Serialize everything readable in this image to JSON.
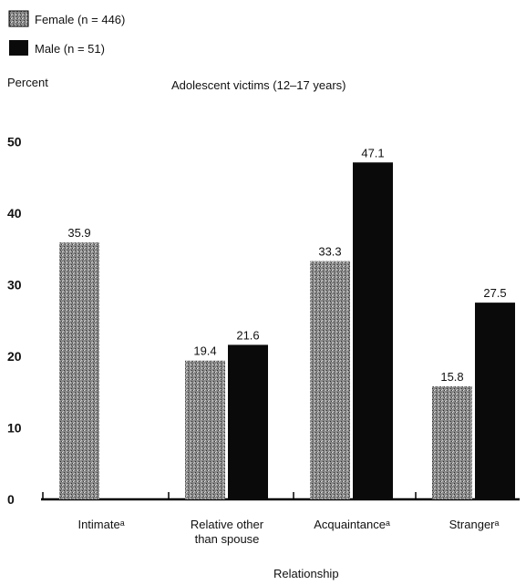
{
  "chart_data": {
    "type": "bar",
    "title": "Adolescent victims (12–17 years)",
    "ylabel": "Percent",
    "xlabel": "Relationship",
    "ylim": [
      0,
      50
    ],
    "yticks": [
      0,
      10,
      20,
      30,
      40,
      50
    ],
    "categories": [
      [
        "Intimateᵃ"
      ],
      [
        "Relative other",
        "than spouse"
      ],
      [
        "Acquaintanceᵃ"
      ],
      [
        "Strangerᵃ"
      ]
    ],
    "series": [
      {
        "name": "Female (n = 446)",
        "color": "#6a6a6a",
        "pattern": "stipple",
        "values": [
          35.9,
          19.4,
          33.3,
          15.8
        ],
        "labels": [
          "35.9",
          "19.4",
          "33.3",
          "15.8"
        ]
      },
      {
        "name": "Male (n = 51)",
        "color": "#0a0a0a",
        "pattern": "solid",
        "values": [
          0,
          21.6,
          47.1,
          27.5
        ],
        "labels": [
          "",
          "21.6",
          "47.1",
          "27.5"
        ]
      }
    ],
    "grid": false,
    "legend": "top-left"
  }
}
